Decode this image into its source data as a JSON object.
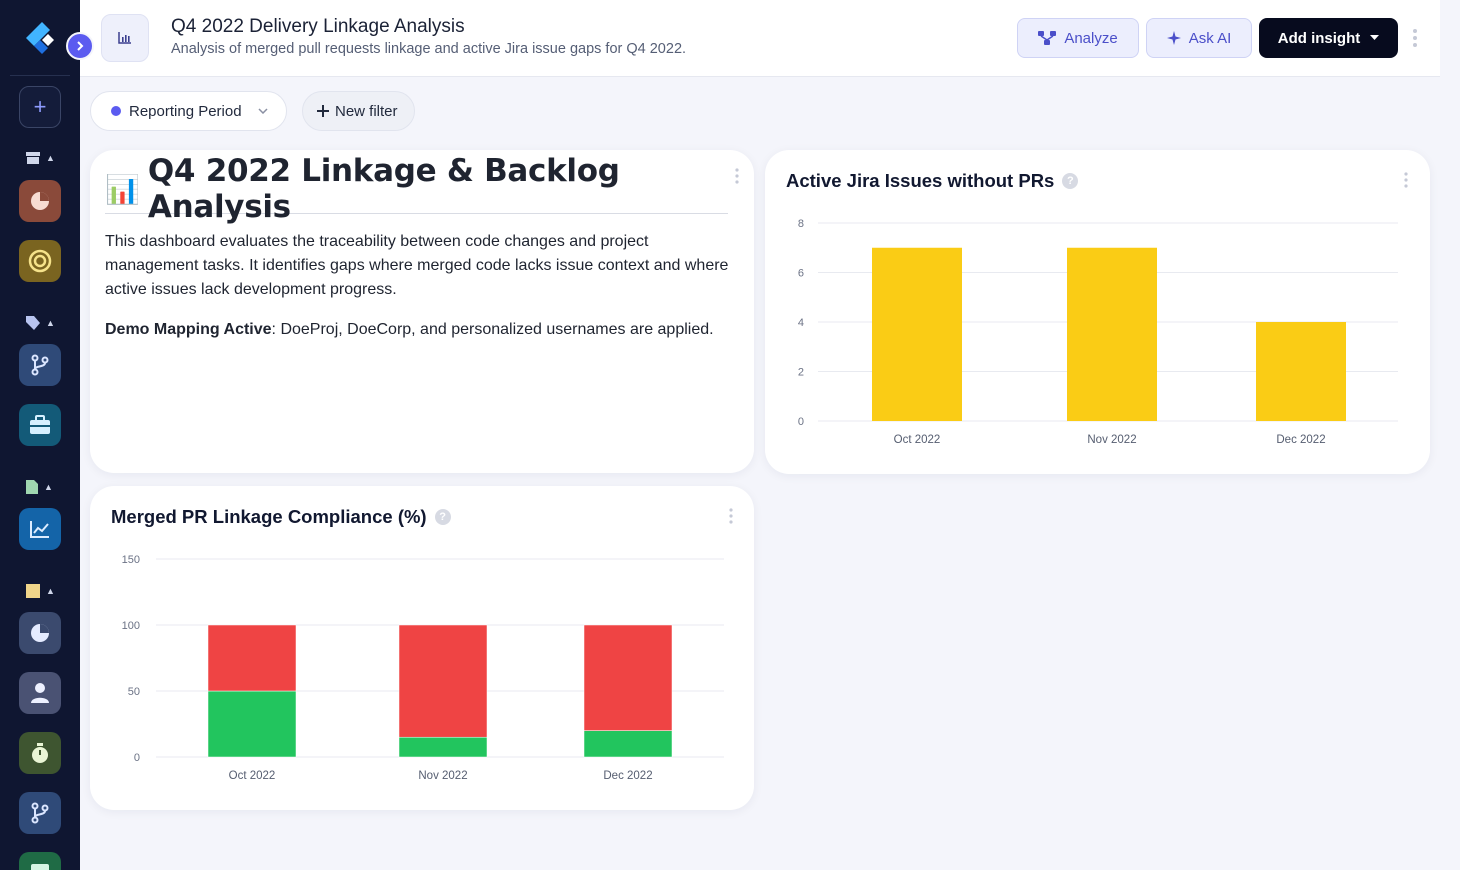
{
  "header": {
    "title": "Q4 2022 Delivery Linkage Analysis",
    "subtitle": "Analysis of merged pull requests linkage and active Jira issue gaps for Q4 2022.",
    "analyze_label": "Analyze",
    "ask_ai_label": "Ask AI",
    "add_insight_label": "Add insight"
  },
  "filters": {
    "period_label": "Reporting Period",
    "new_filter_label": "New filter"
  },
  "text_card": {
    "emoji": "📊",
    "title": "Q4 2022 Linkage & Backlog Analysis",
    "paragraph": "This dashboard evaluates the traceability between code changes and project management tasks. It identifies gaps where merged code lacks issue context and where active issues lack development progress.",
    "note_bold": "Demo Mapping Active",
    "note_rest": ": DoeProj, DoeCorp, and personalized usernames are applied."
  },
  "colors": {
    "accent": "#5b5bf0",
    "jira_bar": "#facc15",
    "linked": "#22c55e",
    "unlinked": "#ef4444"
  },
  "chart_data": [
    {
      "type": "bar",
      "title": "Active Jira Issues without PRs",
      "categories": [
        "Oct 2022",
        "Nov 2022",
        "Dec 2022"
      ],
      "values": [
        7,
        7,
        4
      ],
      "ylim": [
        0,
        8
      ],
      "yticks": [
        0,
        2,
        4,
        6,
        8
      ],
      "grid": true
    },
    {
      "type": "bar",
      "stacked": true,
      "title": "Merged PR Linkage Compliance (%)",
      "categories": [
        "Oct 2022",
        "Nov 2022",
        "Dec 2022"
      ],
      "series": [
        {
          "values": [
            50,
            15,
            20
          ],
          "color": "#22c55e"
        },
        {
          "values": [
            50,
            85,
            80
          ],
          "color": "#ef4444"
        }
      ],
      "ylim": [
        0,
        150
      ],
      "yticks": [
        0,
        50,
        100,
        150
      ],
      "grid": true
    }
  ]
}
